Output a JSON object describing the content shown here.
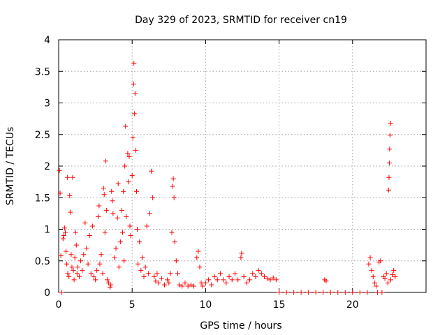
{
  "chart_data": {
    "type": "scatter",
    "title": "Day 329 of 2023, SRMTID for receiver cn19",
    "xlabel": "GPS time / hours",
    "ylabel": "SRMTID / TECUs",
    "xlim": [
      0,
      25
    ],
    "ylim": [
      0,
      4
    ],
    "grid": true,
    "marker": "+",
    "marker_color": "#ff0000",
    "x_ticks": [
      {
        "value": 0,
        "label": "0"
      },
      {
        "value": 5,
        "label": "5"
      },
      {
        "value": 10,
        "label": "10"
      },
      {
        "value": 15,
        "label": "15"
      },
      {
        "value": 20,
        "label": "20"
      }
    ],
    "y_ticks": [
      {
        "value": 0,
        "label": "0"
      },
      {
        "value": 0.5,
        "label": "0.5"
      },
      {
        "value": 1,
        "label": "1"
      },
      {
        "value": 1.5,
        "label": "1.5"
      },
      {
        "value": 2,
        "label": "2"
      },
      {
        "value": 2.5,
        "label": "2.5"
      },
      {
        "value": 3,
        "label": "3"
      },
      {
        "value": 3.5,
        "label": "3.5"
      },
      {
        "value": 4,
        "label": "4"
      }
    ],
    "series": [
      {
        "name": "SRMTID",
        "points": [
          [
            0.05,
            1.93
          ],
          [
            0.1,
            1.57
          ],
          [
            0.15,
            0.58
          ],
          [
            0.2,
            0.0
          ],
          [
            0.3,
            0.85
          ],
          [
            0.35,
            0.9
          ],
          [
            0.4,
            1.02
          ],
          [
            0.45,
            0.95
          ],
          [
            0.5,
            0.65
          ],
          [
            0.55,
            0.45
          ],
          [
            0.6,
            1.82
          ],
          [
            0.62,
            0.3
          ],
          [
            0.7,
            0.25
          ],
          [
            0.75,
            1.53
          ],
          [
            0.8,
            1.27
          ],
          [
            0.85,
            0.6
          ],
          [
            0.9,
            0.4
          ],
          [
            0.95,
            1.82
          ],
          [
            1.0,
            0.35
          ],
          [
            1.05,
            0.2
          ],
          [
            1.1,
            0.55
          ],
          [
            1.15,
            0.95
          ],
          [
            1.2,
            0.75
          ],
          [
            1.25,
            0.3
          ],
          [
            1.3,
            0.4
          ],
          [
            1.4,
            0.25
          ],
          [
            1.5,
            0.5
          ],
          [
            1.6,
            0.35
          ],
          [
            1.7,
            0.6
          ],
          [
            1.8,
            1.1
          ],
          [
            1.9,
            0.7
          ],
          [
            2.0,
            0.45
          ],
          [
            2.1,
            0.9
          ],
          [
            2.2,
            0.3
          ],
          [
            2.3,
            1.05
          ],
          [
            2.4,
            0.25
          ],
          [
            2.5,
            0.2
          ],
          [
            2.6,
            0.35
          ],
          [
            2.7,
            1.2
          ],
          [
            2.75,
            1.37
          ],
          [
            2.8,
            0.45
          ],
          [
            2.9,
            0.6
          ],
          [
            3.0,
            0.3
          ],
          [
            3.05,
            1.65
          ],
          [
            3.1,
            1.55
          ],
          [
            3.15,
            0.95
          ],
          [
            3.2,
            2.08
          ],
          [
            3.25,
            1.3
          ],
          [
            3.3,
            0.2
          ],
          [
            3.4,
            0.15
          ],
          [
            3.5,
            0.08
          ],
          [
            3.55,
            0.12
          ],
          [
            3.6,
            1.6
          ],
          [
            3.65,
            1.45
          ],
          [
            3.7,
            1.25
          ],
          [
            3.8,
            0.55
          ],
          [
            3.9,
            0.7
          ],
          [
            4.0,
            1.18
          ],
          [
            4.05,
            1.72
          ],
          [
            4.1,
            0.4
          ],
          [
            4.2,
            0.8
          ],
          [
            4.3,
            1.3
          ],
          [
            4.35,
            0.95
          ],
          [
            4.4,
            1.6
          ],
          [
            4.45,
            0.5
          ],
          [
            4.5,
            2.0
          ],
          [
            4.55,
            2.63
          ],
          [
            4.6,
            1.2
          ],
          [
            4.7,
            2.2
          ],
          [
            4.75,
            1.75
          ],
          [
            4.8,
            2.15
          ],
          [
            4.85,
            1.05
          ],
          [
            4.9,
            0.9
          ],
          [
            5.0,
            1.85
          ],
          [
            5.05,
            2.45
          ],
          [
            5.1,
            3.3
          ],
          [
            5.12,
            3.63
          ],
          [
            5.15,
            2.83
          ],
          [
            5.2,
            3.15
          ],
          [
            5.25,
            2.25
          ],
          [
            5.3,
            1.6
          ],
          [
            5.35,
            1.0
          ],
          [
            5.4,
            0.45
          ],
          [
            5.5,
            0.8
          ],
          [
            5.6,
            0.35
          ],
          [
            5.7,
            0.55
          ],
          [
            5.8,
            0.25
          ],
          [
            5.9,
            0.4
          ],
          [
            6.0,
            1.05
          ],
          [
            6.1,
            0.3
          ],
          [
            6.2,
            1.25
          ],
          [
            6.3,
            1.92
          ],
          [
            6.4,
            1.5
          ],
          [
            6.5,
            0.25
          ],
          [
            6.6,
            0.18
          ],
          [
            6.7,
            0.3
          ],
          [
            6.8,
            0.15
          ],
          [
            7.0,
            0.22
          ],
          [
            7.2,
            0.12
          ],
          [
            7.4,
            0.2
          ],
          [
            7.5,
            0.15
          ],
          [
            7.6,
            0.3
          ],
          [
            7.7,
            0.95
          ],
          [
            7.75,
            1.68
          ],
          [
            7.8,
            1.8
          ],
          [
            7.85,
            1.5
          ],
          [
            7.9,
            0.8
          ],
          [
            8.0,
            0.5
          ],
          [
            8.1,
            0.3
          ],
          [
            8.2,
            0.12
          ],
          [
            8.4,
            0.1
          ],
          [
            8.6,
            0.15
          ],
          [
            8.8,
            0.1
          ],
          [
            9.0,
            0.12
          ],
          [
            9.2,
            0.1
          ],
          [
            9.4,
            0.55
          ],
          [
            9.5,
            0.65
          ],
          [
            9.6,
            0.4
          ],
          [
            9.7,
            0.15
          ],
          [
            9.8,
            0.1
          ],
          [
            10.0,
            0.15
          ],
          [
            10.2,
            0.2
          ],
          [
            10.4,
            0.12
          ],
          [
            10.6,
            0.25
          ],
          [
            10.8,
            0.2
          ],
          [
            11.0,
            0.3
          ],
          [
            11.2,
            0.2
          ],
          [
            11.4,
            0.15
          ],
          [
            11.6,
            0.25
          ],
          [
            11.8,
            0.2
          ],
          [
            12.0,
            0.3
          ],
          [
            12.2,
            0.2
          ],
          [
            12.4,
            0.55
          ],
          [
            12.45,
            0.62
          ],
          [
            12.6,
            0.25
          ],
          [
            12.8,
            0.15
          ],
          [
            13.0,
            0.2
          ],
          [
            13.2,
            0.3
          ],
          [
            13.4,
            0.25
          ],
          [
            13.6,
            0.35
          ],
          [
            13.8,
            0.3
          ],
          [
            14.0,
            0.25
          ],
          [
            14.2,
            0.22
          ],
          [
            14.4,
            0.2
          ],
          [
            14.6,
            0.23
          ],
          [
            14.8,
            0.2
          ],
          [
            15.0,
            0.0
          ],
          [
            15.5,
            0.0
          ],
          [
            16.0,
            0.0
          ],
          [
            16.5,
            0.0
          ],
          [
            17.0,
            0.0
          ],
          [
            17.5,
            0.0
          ],
          [
            18.0,
            0.0
          ],
          [
            18.1,
            0.2
          ],
          [
            18.2,
            0.18
          ],
          [
            18.5,
            0.0
          ],
          [
            19.0,
            0.0
          ],
          [
            19.5,
            0.0
          ],
          [
            20.0,
            0.0
          ],
          [
            20.5,
            0.0
          ],
          [
            21.0,
            0.0
          ],
          [
            21.1,
            0.45
          ],
          [
            21.2,
            0.55
          ],
          [
            21.3,
            0.35
          ],
          [
            21.4,
            0.25
          ],
          [
            21.5,
            0.15
          ],
          [
            21.6,
            0.1
          ],
          [
            21.7,
            0.0
          ],
          [
            21.8,
            0.48
          ],
          [
            21.9,
            0.5
          ],
          [
            22.0,
            0.0
          ],
          [
            22.1,
            0.25
          ],
          [
            22.2,
            0.22
          ],
          [
            22.3,
            0.3
          ],
          [
            22.4,
            0.15
          ],
          [
            22.45,
            1.62
          ],
          [
            22.48,
            1.82
          ],
          [
            22.5,
            2.05
          ],
          [
            22.52,
            2.27
          ],
          [
            22.55,
            2.49
          ],
          [
            22.58,
            2.68
          ],
          [
            22.6,
            0.2
          ],
          [
            22.7,
            0.28
          ],
          [
            22.8,
            0.35
          ],
          [
            22.9,
            0.25
          ]
        ]
      }
    ]
  }
}
